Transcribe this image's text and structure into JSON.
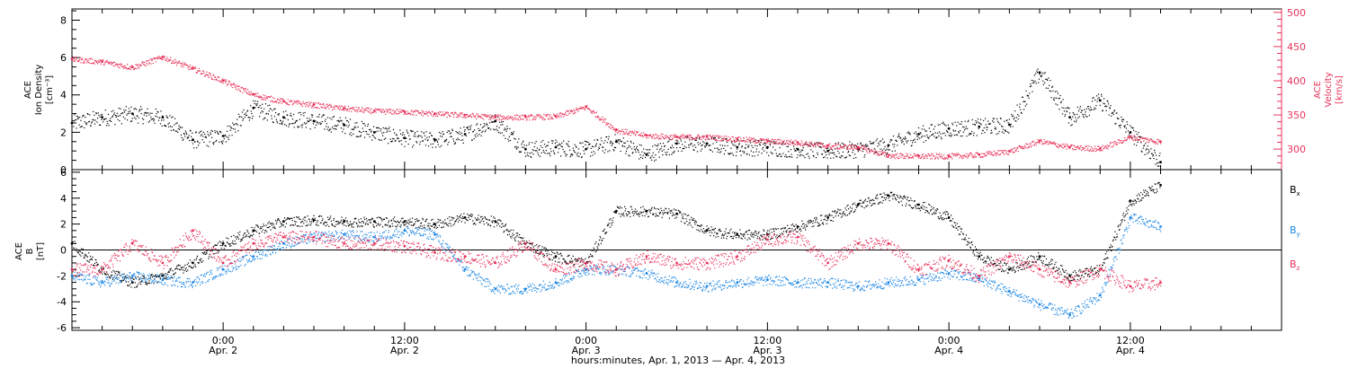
{
  "colors": {
    "axis": "#000000",
    "density": "#000000",
    "velocity": "#e8325a",
    "bx": "#000000",
    "by": "#1e88e5",
    "bz": "#e8325a"
  },
  "xaxis": {
    "start": "2013-04-01T14:00",
    "end": "2013-04-04T22:00",
    "ticks": [
      {
        "time": "2013-04-02T00:00",
        "line1": "0:00",
        "line2": "Apr. 2"
      },
      {
        "time": "2013-04-02T12:00",
        "line1": "12:00",
        "line2": "Apr. 2"
      },
      {
        "time": "2013-04-03T00:00",
        "line1": "0:00",
        "line2": "Apr. 3"
      },
      {
        "time": "2013-04-03T12:00",
        "line1": "12:00",
        "line2": "Apr. 3"
      },
      {
        "time": "2013-04-04T00:00",
        "line1": "0:00",
        "line2": "Apr. 4"
      },
      {
        "time": "2013-04-04T12:00",
        "line1": "12:00",
        "line2": "Apr. 4"
      }
    ],
    "label": "hours:minutes, Apr.  1, 2013 — Apr.  4, 2013"
  },
  "panel1": {
    "left_label_line1": "ACE",
    "left_label_line2": "Ion Density",
    "left_label_line3": "[cm⁻³]",
    "right_label_line1": "ACE",
    "right_label_line2": "Velocity",
    "right_label_line3": "[km/s]",
    "left_ylim": [
      0,
      8.6
    ],
    "left_ticks": [
      "0",
      "2",
      "4",
      "6",
      "8"
    ],
    "right_ylim": [
      270,
      505
    ],
    "right_ticks": [
      "300",
      "350",
      "400",
      "450",
      "500"
    ]
  },
  "panel2": {
    "left_label_line1": "ACE",
    "left_label_line2": "B",
    "left_label_line3": "[nT]",
    "ylim": [
      -6.2,
      6.2
    ],
    "ticks": [
      "-6",
      "-4",
      "-2",
      "0",
      "2",
      "4",
      "6"
    ],
    "legend": [
      {
        "base": "B",
        "sub": "x",
        "color": "#000000"
      },
      {
        "base": "B",
        "sub": "y",
        "color": "#1e88e5"
      },
      {
        "base": "B",
        "sub": "z",
        "color": "#e8325a"
      }
    ]
  },
  "chart_data": {
    "type": "scatter",
    "panels": [
      {
        "series": [
          {
            "axis": "left",
            "unit": "cm^-3",
            "color": "#000000",
            "x": [
              "2013-04-01T14:00",
              "2013-04-01T16:00",
              "2013-04-01T18:00",
              "2013-04-01T20:00",
              "2013-04-01T22:00",
              "2013-04-02T00:00",
              "2013-04-02T02:00",
              "2013-04-02T04:00",
              "2013-04-02T06:00",
              "2013-04-02T08:00",
              "2013-04-02T10:00",
              "2013-04-02T12:00",
              "2013-04-02T14:00",
              "2013-04-02T16:00",
              "2013-04-02T18:00",
              "2013-04-02T20:00",
              "2013-04-02T22:00",
              "2013-04-03T00:00",
              "2013-04-03T02:00",
              "2013-04-03T04:00",
              "2013-04-03T06:00",
              "2013-04-03T08:00",
              "2013-04-03T10:00",
              "2013-04-03T12:00",
              "2013-04-03T14:00",
              "2013-04-03T16:00",
              "2013-04-03T18:00",
              "2013-04-03T20:00",
              "2013-04-03T22:00",
              "2013-04-04T00:00",
              "2013-04-04T02:00",
              "2013-04-04T04:00",
              "2013-04-04T06:00",
              "2013-04-04T08:00",
              "2013-04-04T10:00",
              "2013-04-04T12:00",
              "2013-04-04T14:00"
            ],
            "y": [
              2.5,
              2.8,
              3.0,
              2.8,
              1.6,
              1.8,
              3.3,
              2.8,
              2.6,
              2.4,
              2.0,
              1.7,
              1.6,
              1.9,
              2.6,
              1.1,
              1.2,
              1.1,
              1.5,
              0.8,
              1.4,
              1.4,
              1.2,
              1.2,
              1.1,
              1.0,
              1.1,
              1.3,
              1.9,
              2.2,
              2.3,
              2.4,
              5.2,
              2.8,
              3.7,
              2.0,
              0.4
            ]
          },
          {
            "axis": "right",
            "unit": "km/s",
            "color": "#e8325a",
            "x": [
              "2013-04-01T14:00",
              "2013-04-01T16:00",
              "2013-04-01T18:00",
              "2013-04-01T20:00",
              "2013-04-01T22:00",
              "2013-04-02T00:00",
              "2013-04-02T02:00",
              "2013-04-02T04:00",
              "2013-04-02T06:00",
              "2013-04-02T08:00",
              "2013-04-02T10:00",
              "2013-04-02T12:00",
              "2013-04-02T14:00",
              "2013-04-02T16:00",
              "2013-04-02T18:00",
              "2013-04-02T20:00",
              "2013-04-02T22:00",
              "2013-04-03T00:00",
              "2013-04-03T02:00",
              "2013-04-03T04:00",
              "2013-04-03T06:00",
              "2013-04-03T08:00",
              "2013-04-03T10:00",
              "2013-04-03T12:00",
              "2013-04-03T14:00",
              "2013-04-03T16:00",
              "2013-04-03T18:00",
              "2013-04-03T20:00",
              "2013-04-03T22:00",
              "2013-04-04T00:00",
              "2013-04-04T02:00",
              "2013-04-04T04:00",
              "2013-04-04T06:00",
              "2013-04-04T08:00",
              "2013-04-04T10:00",
              "2013-04-04T12:00",
              "2013-04-04T14:00"
            ],
            "y": [
              432,
              428,
              420,
              435,
              418,
              400,
              380,
              370,
              365,
              360,
              356,
              355,
              352,
              350,
              347,
              347,
              348,
              362,
              328,
              320,
              318,
              318,
              315,
              312,
              310,
              305,
              303,
              291,
              290,
              290,
              292,
              297,
              312,
              303,
              301,
              318,
              311
            ]
          }
        ]
      },
      {
        "series": [
          {
            "name": "Bx",
            "unit": "nT",
            "color": "#000000",
            "x": [
              "2013-04-01T14:00",
              "2013-04-01T16:00",
              "2013-04-01T18:00",
              "2013-04-01T20:00",
              "2013-04-01T22:00",
              "2013-04-02T00:00",
              "2013-04-02T02:00",
              "2013-04-02T04:00",
              "2013-04-02T06:00",
              "2013-04-02T08:00",
              "2013-04-02T10:00",
              "2013-04-02T12:00",
              "2013-04-02T14:00",
              "2013-04-02T16:00",
              "2013-04-02T18:00",
              "2013-04-02T20:00",
              "2013-04-02T22:00",
              "2013-04-03T00:00",
              "2013-04-03T02:00",
              "2013-04-03T04:00",
              "2013-04-03T06:00",
              "2013-04-03T08:00",
              "2013-04-03T10:00",
              "2013-04-03T12:00",
              "2013-04-03T14:00",
              "2013-04-03T16:00",
              "2013-04-03T18:00",
              "2013-04-03T20:00",
              "2013-04-03T22:00",
              "2013-04-04T00:00",
              "2013-04-04T02:00",
              "2013-04-04T04:00",
              "2013-04-04T06:00",
              "2013-04-04T08:00",
              "2013-04-04T10:00",
              "2013-04-04T12:00",
              "2013-04-04T14:00"
            ],
            "y": [
              0.5,
              -1.5,
              -2.5,
              -2.0,
              -1.0,
              0.5,
              1.5,
              2.2,
              2.3,
              2.2,
              2.2,
              2.2,
              2.0,
              2.5,
              2.2,
              0.5,
              -0.5,
              -1.0,
              3.0,
              3.0,
              2.8,
              1.5,
              1.2,
              1.2,
              1.8,
              2.5,
              3.5,
              4.2,
              3.5,
              2.5,
              -0.5,
              -1.5,
              -0.5,
              -2.0,
              -1.5,
              3.8,
              5.0
            ]
          },
          {
            "name": "By",
            "unit": "nT",
            "color": "#1e88e5",
            "x": [
              "2013-04-01T14:00",
              "2013-04-01T16:00",
              "2013-04-01T18:00",
              "2013-04-01T20:00",
              "2013-04-01T22:00",
              "2013-04-02T00:00",
              "2013-04-02T02:00",
              "2013-04-02T04:00",
              "2013-04-02T06:00",
              "2013-04-02T08:00",
              "2013-04-02T10:00",
              "2013-04-02T12:00",
              "2013-04-02T14:00",
              "2013-04-02T16:00",
              "2013-04-02T18:00",
              "2013-04-02T20:00",
              "2013-04-02T22:00",
              "2013-04-03T00:00",
              "2013-04-03T02:00",
              "2013-04-03T04:00",
              "2013-04-03T06:00",
              "2013-04-03T08:00",
              "2013-04-03T10:00",
              "2013-04-03T12:00",
              "2013-04-03T14:00",
              "2013-04-03T16:00",
              "2013-04-03T18:00",
              "2013-04-03T20:00",
              "2013-04-03T22:00",
              "2013-04-04T00:00",
              "2013-04-04T02:00",
              "2013-04-04T04:00",
              "2013-04-04T06:00",
              "2013-04-04T08:00",
              "2013-04-04T10:00",
              "2013-04-04T12:00",
              "2013-04-04T14:00"
            ],
            "y": [
              -2.0,
              -2.5,
              -2.0,
              -2.3,
              -2.5,
              -1.5,
              -0.5,
              0.5,
              1.0,
              1.2,
              1.0,
              1.5,
              1.2,
              -1.5,
              -3.0,
              -3.0,
              -2.5,
              -1.5,
              -1.5,
              -1.8,
              -2.5,
              -2.8,
              -2.5,
              -2.3,
              -2.5,
              -2.5,
              -2.8,
              -2.5,
              -2.3,
              -1.8,
              -2.2,
              -3.2,
              -4.2,
              -5.0,
              -3.5,
              2.5,
              1.8
            ]
          },
          {
            "name": "Bz",
            "unit": "nT",
            "color": "#e8325a",
            "x": [
              "2013-04-01T14:00",
              "2013-04-01T16:00",
              "2013-04-01T18:00",
              "2013-04-01T20:00",
              "2013-04-01T22:00",
              "2013-04-02T00:00",
              "2013-04-02T02:00",
              "2013-04-02T04:00",
              "2013-04-02T06:00",
              "2013-04-02T08:00",
              "2013-04-02T10:00",
              "2013-04-02T12:00",
              "2013-04-02T14:00",
              "2013-04-02T16:00",
              "2013-04-02T18:00",
              "2013-04-02T20:00",
              "2013-04-02T22:00",
              "2013-04-03T00:00",
              "2013-04-03T02:00",
              "2013-04-03T04:00",
              "2013-04-03T06:00",
              "2013-04-03T08:00",
              "2013-04-03T10:00",
              "2013-04-03T12:00",
              "2013-04-03T14:00",
              "2013-04-03T16:00",
              "2013-04-03T18:00",
              "2013-04-03T20:00",
              "2013-04-03T22:00",
              "2013-04-04T00:00",
              "2013-04-04T02:00",
              "2013-04-04T04:00",
              "2013-04-04T06:00",
              "2013-04-04T08:00",
              "2013-04-04T10:00",
              "2013-04-04T12:00",
              "2013-04-04T14:00"
            ],
            "y": [
              -1.5,
              -1.5,
              0.5,
              -1.0,
              1.5,
              -1.0,
              0.5,
              1.0,
              1.0,
              0.5,
              0.5,
              0.3,
              -0.2,
              -0.5,
              -1.0,
              0.5,
              -1.5,
              -1.0,
              -1.5,
              -0.5,
              -1.0,
              -1.0,
              -0.5,
              0.8,
              1.0,
              -1.0,
              0.5,
              0.5,
              -1.5,
              -0.8,
              -2.0,
              -0.5,
              -1.5,
              -2.5,
              -1.5,
              -2.8,
              -2.5
            ]
          }
        ]
      }
    ]
  }
}
